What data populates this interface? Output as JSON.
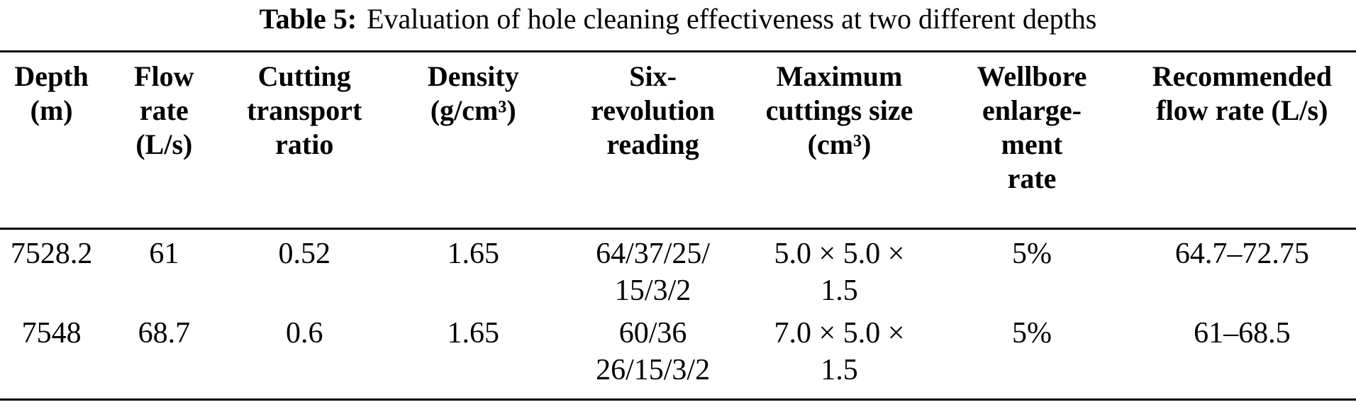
{
  "title": {
    "label": "Table 5:",
    "text": "Evaluation of hole cleaning effectiveness at two different depths"
  },
  "table": {
    "columns": [
      {
        "id": "depth",
        "lines": [
          "Depth",
          "(m)"
        ]
      },
      {
        "id": "flow-rate",
        "lines": [
          "Flow",
          "rate",
          "(L/s)"
        ]
      },
      {
        "id": "cutting-transport-ratio",
        "lines": [
          "Cutting",
          "transport",
          "ratio"
        ]
      },
      {
        "id": "density",
        "lines": [
          "Density",
          "(g/cm³)"
        ]
      },
      {
        "id": "six-revolution-reading",
        "lines": [
          "Six-",
          "revolution",
          "reading"
        ]
      },
      {
        "id": "maximum-cuttings-size",
        "lines": [
          "Maximum",
          "cuttings size",
          "(cm³)"
        ]
      },
      {
        "id": "wellbore-enlargement-rate",
        "lines": [
          "Wellbore",
          "enlarge-",
          "ment",
          "rate"
        ]
      },
      {
        "id": "recommended-flow-rate",
        "lines": [
          "Recommended",
          "flow rate (L/s)"
        ]
      }
    ],
    "rows": [
      {
        "cells": [
          [
            "7528.2"
          ],
          [
            "61"
          ],
          [
            "0.52"
          ],
          [
            "1.65"
          ],
          [
            "64/37/25/",
            "15/3/2"
          ],
          [
            "5.0 × 5.0 ×",
            "1.5"
          ],
          [
            "5%"
          ],
          [
            "64.7–72.75"
          ]
        ]
      },
      {
        "cells": [
          [
            "7548"
          ],
          [
            "68.7"
          ],
          [
            "0.6"
          ],
          [
            "1.65"
          ],
          [
            "60/36",
            "26/15/3/2"
          ],
          [
            "7.0 × 5.0 ×",
            "1.5"
          ],
          [
            "5%"
          ],
          [
            "61–68.5"
          ]
        ]
      }
    ]
  },
  "colors": {
    "text": "#000000",
    "background": "#ffffff",
    "rule": "#000000"
  }
}
